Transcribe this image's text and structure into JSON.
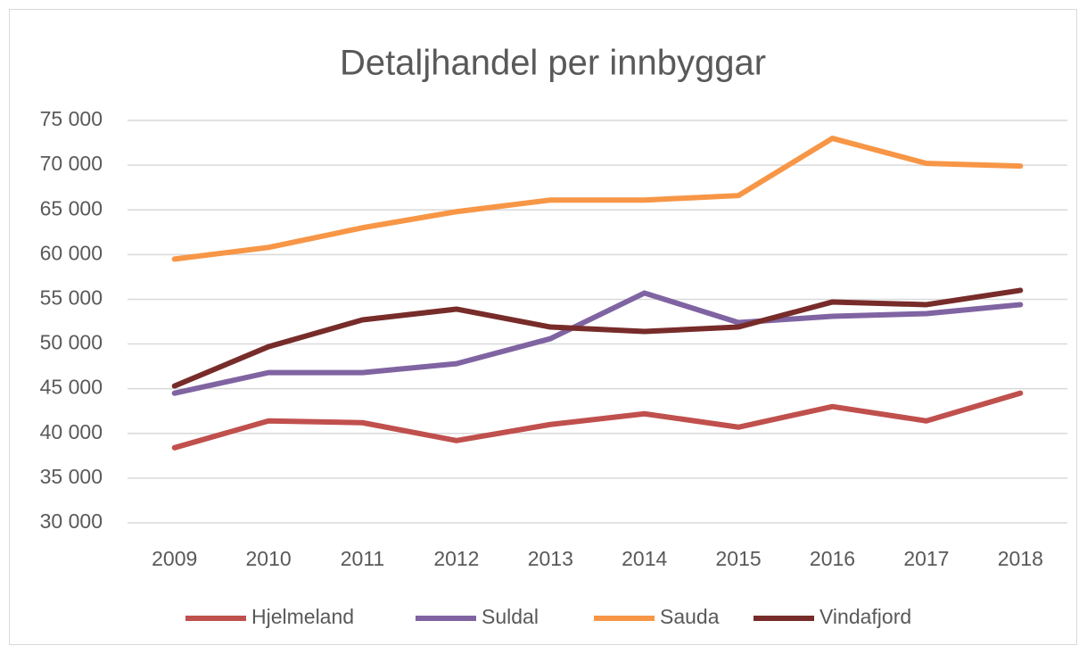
{
  "chart_data": {
    "type": "line",
    "title": "Detaljhandel per innbyggar",
    "categories": [
      "2009",
      "2010",
      "2011",
      "2012",
      "2013",
      "2014",
      "2015",
      "2016",
      "2017",
      "2018"
    ],
    "series": [
      {
        "name": "Hjelmeland",
        "color": "#c0504d",
        "values": [
          38400,
          41400,
          41200,
          39200,
          41000,
          42200,
          40700,
          43000,
          41400,
          44500
        ]
      },
      {
        "name": "Suldal",
        "color": "#8064a2",
        "values": [
          44500,
          46800,
          46800,
          47800,
          50600,
          55700,
          52400,
          53100,
          53400,
          54400
        ]
      },
      {
        "name": "Sauda",
        "color": "#f79646",
        "values": [
          59500,
          60800,
          63000,
          64800,
          66100,
          66100,
          66600,
          73000,
          70200,
          69900
        ]
      },
      {
        "name": "Vindafjord",
        "color": "#772c2a",
        "values": [
          45300,
          49700,
          52700,
          53900,
          51900,
          51400,
          51900,
          54700,
          54400,
          56000
        ]
      }
    ],
    "ylim": [
      30000,
      75000
    ],
    "yticks": [
      {
        "value": 30000,
        "label": "30 000"
      },
      {
        "value": 35000,
        "label": "35 000"
      },
      {
        "value": 40000,
        "label": "40 000"
      },
      {
        "value": 45000,
        "label": "45 000"
      },
      {
        "value": 50000,
        "label": "50 000"
      },
      {
        "value": 55000,
        "label": "55 000"
      },
      {
        "value": 60000,
        "label": "60 000"
      },
      {
        "value": 65000,
        "label": "65 000"
      },
      {
        "value": 70000,
        "label": "70 000"
      },
      {
        "value": 75000,
        "label": "75 000"
      }
    ],
    "grid": true,
    "legend": "bottom"
  }
}
